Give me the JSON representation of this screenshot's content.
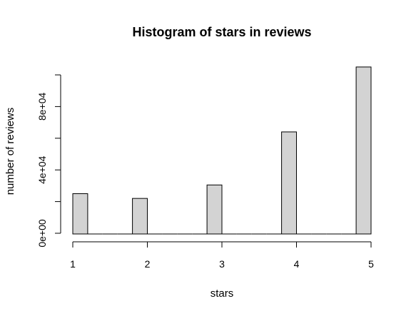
{
  "chart_data": {
    "type": "bar",
    "title": "Histogram of stars in reviews",
    "xlabel": "stars",
    "ylabel": "number of reviews",
    "x_ticks": [
      1,
      2,
      3,
      4,
      5
    ],
    "x_tick_labels": [
      "1",
      "2",
      "3",
      "4",
      "5"
    ],
    "y_ticks": [
      0,
      20000,
      40000,
      60000,
      80000,
      100000
    ],
    "y_tick_labels": [
      "0e+00",
      "",
      "4e+04",
      "",
      "8e+04",
      ""
    ],
    "xlim": [
      1,
      5
    ],
    "ylim": [
      0,
      100000
    ],
    "bins": [
      {
        "x0": 1.0,
        "x1": 1.2,
        "value": 25000
      },
      {
        "x0": 1.2,
        "x1": 1.4,
        "value": 0
      },
      {
        "x0": 1.4,
        "x1": 1.6,
        "value": 0
      },
      {
        "x0": 1.6,
        "x1": 1.8,
        "value": 0
      },
      {
        "x0": 1.8,
        "x1": 2.0,
        "value": 22000
      },
      {
        "x0": 2.0,
        "x1": 2.2,
        "value": 0
      },
      {
        "x0": 2.2,
        "x1": 2.4,
        "value": 0
      },
      {
        "x0": 2.4,
        "x1": 2.6,
        "value": 0
      },
      {
        "x0": 2.6,
        "x1": 2.8,
        "value": 0
      },
      {
        "x0": 2.8,
        "x1": 3.0,
        "value": 30500
      },
      {
        "x0": 3.0,
        "x1": 3.2,
        "value": 0
      },
      {
        "x0": 3.2,
        "x1": 3.4,
        "value": 0
      },
      {
        "x0": 3.4,
        "x1": 3.6,
        "value": 0
      },
      {
        "x0": 3.6,
        "x1": 3.8,
        "value": 0
      },
      {
        "x0": 3.8,
        "x1": 4.0,
        "value": 64000
      },
      {
        "x0": 4.0,
        "x1": 4.2,
        "value": 0
      },
      {
        "x0": 4.2,
        "x1": 4.4,
        "value": 0
      },
      {
        "x0": 4.4,
        "x1": 4.6,
        "value": 0
      },
      {
        "x0": 4.6,
        "x1": 4.8,
        "value": 0
      },
      {
        "x0": 4.8,
        "x1": 5.0,
        "value": 105000
      }
    ],
    "bar_color": "#d3d3d3",
    "grid": false,
    "legend": "none"
  }
}
